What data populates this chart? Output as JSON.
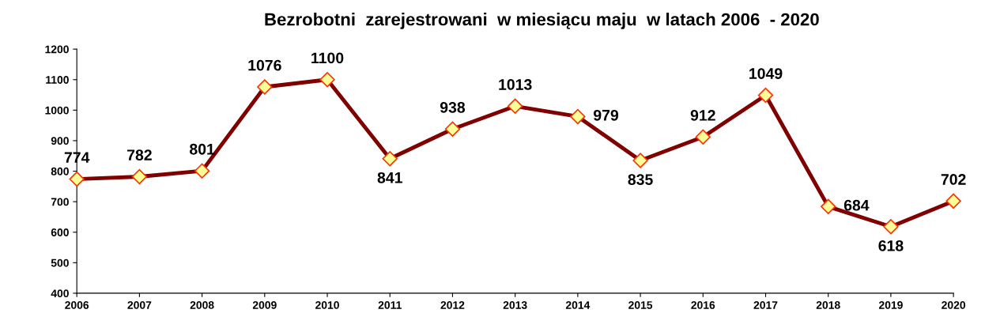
{
  "chart_data": {
    "type": "line",
    "title": "Bezrobotni  zarejestrowani  w miesiącu maju  w latach 2006  - 2020",
    "x": [
      2006,
      2007,
      2008,
      2009,
      2010,
      2011,
      2012,
      2013,
      2014,
      2015,
      2016,
      2017,
      2018,
      2019,
      2020
    ],
    "series": [
      {
        "color": "#800000",
        "values": [
          774,
          782,
          801,
          1076,
          1100,
          841,
          938,
          1013,
          979,
          835,
          912,
          1049,
          684,
          618,
          702
        ]
      }
    ],
    "xlim": [
      2006,
      2020
    ],
    "xticks": [
      2006,
      2007,
      2008,
      2009,
      2010,
      2011,
      2012,
      2013,
      2014,
      2015,
      2016,
      2017,
      2018,
      2019,
      2020
    ],
    "ylim": [
      400,
      1200
    ],
    "yticks": [
      400,
      500,
      600,
      700,
      800,
      900,
      1000,
      1100,
      1200
    ],
    "grid": false,
    "legend": false,
    "marker": "diamond",
    "line_style": "solid",
    "data_labels": true
  }
}
